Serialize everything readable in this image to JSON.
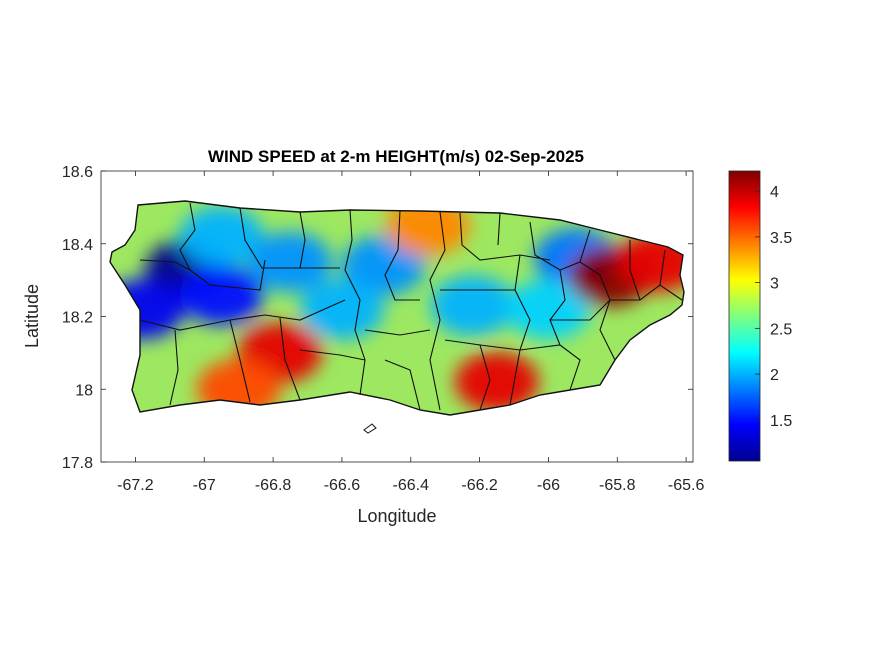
{
  "chart_data": {
    "type": "heatmap",
    "title": "WIND SPEED at 2-m HEIGHT(m/s) 02-Sep-2025",
    "xlabel": "Longitude",
    "ylabel": "Latitude",
    "xlim": [
      -67.3,
      -65.58
    ],
    "ylim": [
      17.8,
      18.6
    ],
    "xticks": [
      "-67.2",
      "-67",
      "-66.8",
      "-66.6",
      "-66.4",
      "-66.2",
      "-66",
      "-65.8",
      "-65.6"
    ],
    "xtick_values": [
      -67.2,
      -67.0,
      -66.8,
      -66.6,
      -66.4,
      -66.2,
      -66.0,
      -65.8,
      -65.6
    ],
    "yticks": [
      "18.6",
      "18.4",
      "18.2",
      "18"
    ],
    "ytick_values": [
      18.6,
      18.4,
      18.2,
      18.0
    ],
    "ytick_extra": {
      "label": "17.8",
      "value": 17.8
    },
    "colorbar": {
      "colormap": "jet",
      "range": [
        1.05,
        4.22
      ],
      "ticks": [
        "1.5",
        "2",
        "2.5",
        "3",
        "3.5",
        "4"
      ],
      "tick_values": [
        1.5,
        2.0,
        2.5,
        3.0,
        3.5,
        4.0
      ]
    },
    "field_hotspots": [
      {
        "lon": -67.05,
        "lat": 18.33,
        "value": 1.1
      },
      {
        "lon": -67.18,
        "lat": 18.22,
        "value": 1.4
      },
      {
        "lon": -66.95,
        "lat": 18.26,
        "value": 1.5
      },
      {
        "lon": -66.95,
        "lat": 18.42,
        "value": 2.0
      },
      {
        "lon": -66.75,
        "lat": 18.35,
        "value": 1.9
      },
      {
        "lon": -66.48,
        "lat": 18.34,
        "value": 1.9
      },
      {
        "lon": -66.6,
        "lat": 18.22,
        "value": 2.0
      },
      {
        "lon": -66.22,
        "lat": 18.23,
        "value": 2.0
      },
      {
        "lon": -65.92,
        "lat": 18.36,
        "value": 1.8
      },
      {
        "lon": -66.0,
        "lat": 18.22,
        "value": 2.1
      },
      {
        "lon": -65.82,
        "lat": 18.31,
        "value": 4.2
      },
      {
        "lon": -65.68,
        "lat": 18.35,
        "value": 3.9
      },
      {
        "lon": -66.78,
        "lat": 18.1,
        "value": 3.9
      },
      {
        "lon": -66.15,
        "lat": 18.02,
        "value": 3.9
      },
      {
        "lon": -66.9,
        "lat": 18.0,
        "value": 3.6
      },
      {
        "lon": -66.35,
        "lat": 18.45,
        "value": 3.4
      }
    ]
  }
}
